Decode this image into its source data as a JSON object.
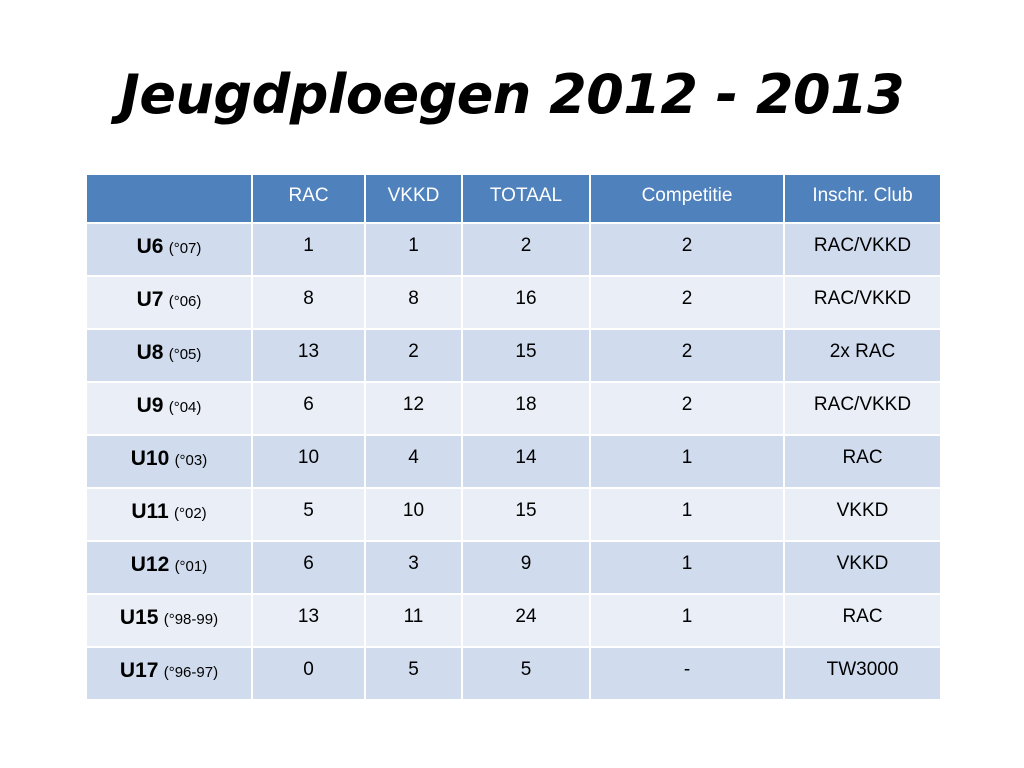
{
  "title": "Jeugdploegen 2012 - 2013",
  "table": {
    "headers": [
      "",
      "RAC",
      "VKKD",
      "TOTAAL",
      "Competitie",
      "Inschr. Club"
    ],
    "rows": [
      {
        "age": "U6",
        "year": "(°07)",
        "rac": "1",
        "vkkd": "1",
        "totaal": "2",
        "competitie": "2",
        "club": "RAC/VKKD"
      },
      {
        "age": "U7",
        "year": "(°06)",
        "rac": "8",
        "vkkd": "8",
        "totaal": "16",
        "competitie": "2",
        "club": "RAC/VKKD"
      },
      {
        "age": "U8",
        "year": "(°05)",
        "rac": "13",
        "vkkd": "2",
        "totaal": "15",
        "competitie": "2",
        "club": "2x RAC"
      },
      {
        "age": "U9",
        "year": "(°04)",
        "rac": "6",
        "vkkd": "12",
        "totaal": "18",
        "competitie": "2",
        "club": "RAC/VKKD"
      },
      {
        "age": "U10",
        "year": "(°03)",
        "rac": "10",
        "vkkd": "4",
        "totaal": "14",
        "competitie": "1",
        "club": "RAC"
      },
      {
        "age": "U11",
        "year": "(°02)",
        "rac": "5",
        "vkkd": "10",
        "totaal": "15",
        "competitie": "1",
        "club": "VKKD"
      },
      {
        "age": "U12",
        "year": "(°01)",
        "rac": "6",
        "vkkd": "3",
        "totaal": "9",
        "competitie": "1",
        "club": "VKKD"
      },
      {
        "age": "U15",
        "year": "(°98-99)",
        "rac": "13",
        "vkkd": "11",
        "totaal": "24",
        "competitie": "1",
        "club": "RAC"
      },
      {
        "age": "U17",
        "year": "(°96-97)",
        "rac": "0",
        "vkkd": "5",
        "totaal": "5",
        "competitie": "-",
        "club": "TW3000"
      }
    ]
  },
  "colors": {
    "header_bg": "#4f81bd",
    "row_bg_dark": "#d0dcee",
    "row_bg_light": "#e9eef7",
    "header_text": "#ffffff"
  }
}
